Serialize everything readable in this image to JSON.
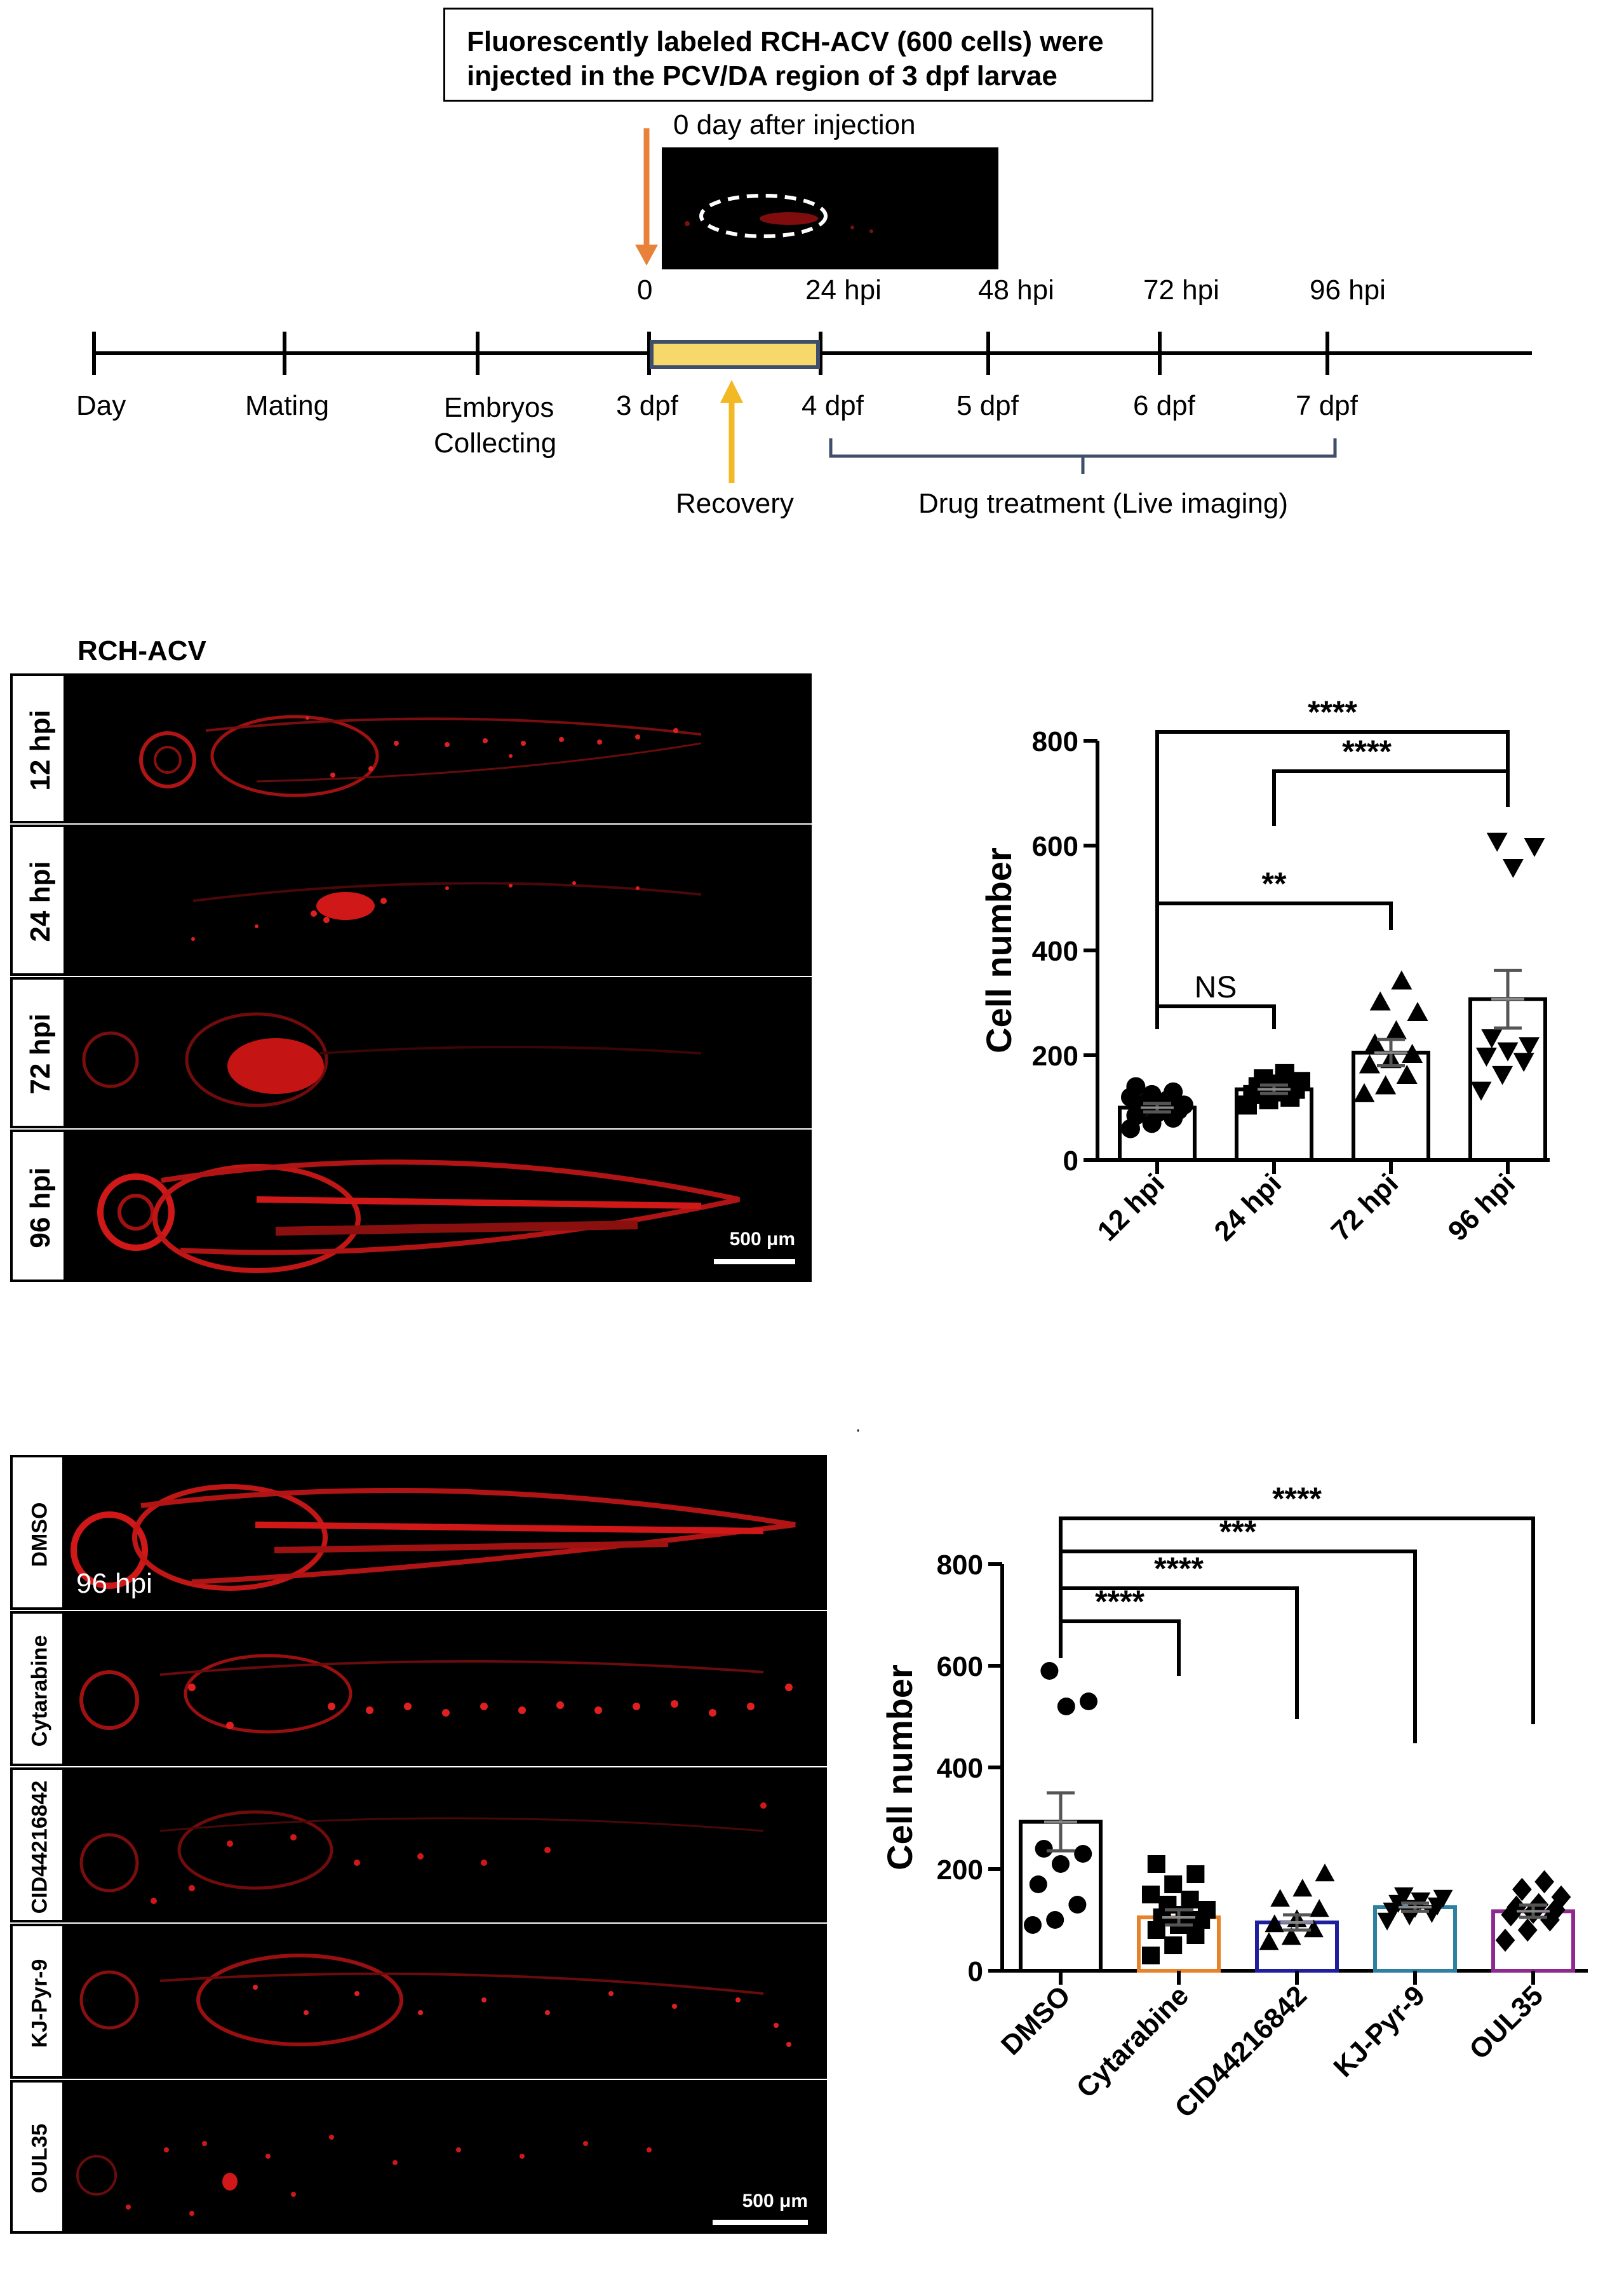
{
  "timeline": {
    "title_line1": "Fluorescently labeled RCH-ACV (600 cells) were",
    "title_line2": "injected in the PCV/DA region of 3 dpf larvae",
    "inset_label": "0 day after injection",
    "hpi_labels": [
      "0",
      "24 hpi",
      "48 hpi",
      "72 hpi",
      "96 hpi"
    ],
    "stage_labels": [
      "Day",
      "Mating",
      "Embryos\nCollecting",
      "3 dpf",
      "4 dpf",
      "5 dpf",
      "6 dpf",
      "7 dpf"
    ],
    "embryos_line1": "Embryos",
    "embryos_line2": "Collecting",
    "recovery_label": "Recovery",
    "drug_label": "Drug treatment (Live imaging)",
    "colors": {
      "orange_arrow": "#E8823A",
      "yellow_arrow": "#F2B826",
      "recovery_bar": "#F7D96B",
      "bracket": "#3F4E6A"
    }
  },
  "panel_b": {
    "title": "RCH-ACV",
    "rows": [
      "12 hpi",
      "24 hpi",
      "72 hpi",
      "96 hpi"
    ],
    "scale_bar": "500 μm"
  },
  "panel_c": {
    "rows": [
      "DMSO",
      "Cytarabine",
      "CID44216842",
      "KJ-Pyr-9",
      "OUL35"
    ],
    "overlay_label": "96 hpi",
    "scale_bar": "500 μm"
  },
  "chart_data": [
    {
      "type": "bar",
      "categories": [
        "12 hpi",
        "24 hpi",
        "72 hpi",
        "96 hpi"
      ],
      "values": [
        100,
        135,
        205,
        307
      ],
      "errors": [
        8,
        8,
        25,
        55
      ],
      "ylabel": "Cell number",
      "xlabel": "",
      "ylim": [
        0,
        800
      ],
      "yticks": [
        0,
        200,
        400,
        600,
        800
      ],
      "points": [
        [
          60,
          70,
          80,
          85,
          90,
          95,
          100,
          100,
          105,
          110,
          115,
          120,
          125,
          130,
          140
        ],
        [
          105,
          115,
          120,
          125,
          130,
          135,
          140,
          145,
          150,
          155,
          165
        ],
        [
          125,
          140,
          160,
          180,
          190,
          200,
          220,
          245,
          280,
          300,
          340
        ],
        [
          135,
          165,
          190,
          200,
          210,
          220,
          235,
          560,
          600,
          610
        ]
      ],
      "markers": [
        "circle",
        "square",
        "triangle-up",
        "triangle-down"
      ],
      "significance": [
        {
          "from": "12 hpi",
          "to": "24 hpi",
          "label": "NS"
        },
        {
          "from": "12 hpi",
          "to": "72 hpi",
          "label": "**"
        },
        {
          "from": "24 hpi",
          "to": "96 hpi",
          "label": "****"
        },
        {
          "from": "12 hpi",
          "to": "96 hpi",
          "label": "****"
        }
      ]
    },
    {
      "type": "bar",
      "title": "96 hpi",
      "categories": [
        "DMSO",
        "Cytarabine",
        "CID44216842",
        "KJ-Pyr-9",
        "OUL35"
      ],
      "values": [
        293,
        105,
        95,
        125,
        117
      ],
      "errors": [
        57,
        15,
        15,
        8,
        12
      ],
      "ylabel": "Cell number",
      "xlabel": "",
      "ylim": [
        0,
        800
      ],
      "yticks": [
        0,
        200,
        400,
        600,
        800
      ],
      "bar_colors": [
        "#000000",
        "#E8822A",
        "#1F1F9E",
        "#2F7FA0",
        "#8E2A8E"
      ],
      "points": [
        [
          90,
          100,
          130,
          170,
          210,
          230,
          240,
          520,
          530,
          590
        ],
        [
          30,
          50,
          70,
          80,
          90,
          100,
          105,
          110,
          120,
          130,
          140,
          150,
          170,
          190,
          210
        ],
        [
          55,
          65,
          80,
          90,
          100,
          120,
          140,
          160,
          190
        ],
        [
          100,
          110,
          115,
          120,
          125,
          130,
          135,
          140,
          145,
          150
        ],
        [
          60,
          80,
          100,
          110,
          115,
          120,
          125,
          130,
          145,
          160,
          175
        ]
      ],
      "markers": [
        "circle",
        "square",
        "triangle-up",
        "triangle-down",
        "diamond"
      ],
      "significance": [
        {
          "from": "DMSO",
          "to": "Cytarabine",
          "label": "****"
        },
        {
          "from": "DMSO",
          "to": "CID44216842",
          "label": "****"
        },
        {
          "from": "DMSO",
          "to": "KJ-Pyr-9",
          "label": "***"
        },
        {
          "from": "DMSO",
          "to": "OUL35",
          "label": "****"
        }
      ]
    }
  ]
}
